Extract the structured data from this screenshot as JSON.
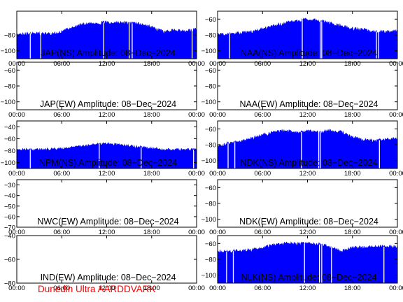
{
  "footer": "Dunedin Ultra AARDDVARK",
  "colors": {
    "signal": "#0000ff",
    "axes": "#000000",
    "footer": "#ff0000",
    "background": "#ffffff"
  },
  "x_ticks": [
    "00:00",
    "06:00",
    "12:00",
    "18:00",
    "00:00"
  ],
  "chart_data": [
    {
      "type": "area",
      "title": "JAP(NS) Amplitude: 08−Dec−2024",
      "x_hours": [
        0,
        1.5,
        3,
        4.5,
        6,
        7.5,
        9,
        10.5,
        12,
        13.5,
        15,
        16.5,
        18,
        19.5,
        21,
        22.5,
        24
      ],
      "y_max": [
        -78,
        -76,
        -76,
        -77,
        -74,
        -68,
        -64,
        -63,
        -62,
        -62,
        -63,
        -64,
        -68,
        -74,
        -72,
        -74,
        -70
      ],
      "dips": [
        [
          1.8,
          -104
        ],
        [
          3.2,
          -96
        ],
        [
          11.6,
          -100
        ],
        [
          15.0,
          -106
        ],
        [
          15.4,
          -100
        ],
        [
          23.4,
          -96
        ]
      ],
      "ylim": [
        -110,
        -50
      ],
      "yticks": [
        "-80",
        "-100"
      ],
      "ytick_values": [
        -80,
        -100
      ],
      "has_data": true
    },
    {
      "type": "area",
      "title": "NAA(NS) Amplitude: 08−Dec−2024",
      "x_hours": [
        0,
        1.5,
        3,
        4.5,
        6,
        7.5,
        9,
        10.5,
        12,
        13.5,
        15,
        16.5,
        18,
        19.5,
        21,
        22.5,
        24
      ],
      "y_max": [
        -78,
        -76,
        -75,
        -74,
        -70,
        -66,
        -63,
        -60,
        -58,
        -60,
        -63,
        -66,
        -70,
        -71,
        -74,
        -74,
        -73
      ],
      "dips": [
        [
          1.6,
          -96
        ],
        [
          11.3,
          -110
        ],
        [
          13.7,
          -96
        ],
        [
          13.9,
          -104
        ],
        [
          21.2,
          -94
        ],
        [
          21.5,
          -98
        ]
      ],
      "ylim": [
        -110,
        -50
      ],
      "yticks": [
        "-60",
        "-80",
        "-100"
      ],
      "ytick_values": [
        -60,
        -80,
        -100
      ],
      "has_data": true
    },
    {
      "type": "line",
      "title": "JAP(EW) Amplitude: 08−Dec−2024",
      "ylim": [
        -110,
        -50
      ],
      "yticks": [
        "-60",
        "-80",
        "-100"
      ],
      "ytick_values": [
        -60,
        -80,
        -100
      ],
      "has_data": false
    },
    {
      "type": "line",
      "title": "NAA(EW) Amplitude: 08−Dec−2024",
      "ylim": [
        -110,
        -50
      ],
      "yticks": [
        "-60",
        "-80",
        "-100"
      ],
      "ytick_values": [
        -60,
        -80,
        -100
      ],
      "has_data": false
    },
    {
      "type": "area",
      "title": "NPM(NS) Amplitude: 08−Dec−2024",
      "x_hours": [
        0,
        1.5,
        3,
        4.5,
        6,
        7.5,
        9,
        10.5,
        12,
        13.5,
        15,
        16.5,
        18,
        19.5,
        21,
        22.5,
        24
      ],
      "y_max": [
        -76,
        -76,
        -76,
        -75,
        -74,
        -72,
        -70,
        -67,
        -66,
        -68,
        -70,
        -72,
        -74,
        -76,
        -76,
        -76,
        -76
      ],
      "dips": [
        [
          1.8,
          -98
        ],
        [
          11.0,
          -96
        ],
        [
          16.6,
          -98
        ],
        [
          23.6,
          -98
        ]
      ],
      "ylim": [
        -110,
        -30
      ],
      "yticks": [
        "-40",
        "-60",
        "-80",
        "-100"
      ],
      "ytick_values": [
        -40,
        -60,
        -80,
        -100
      ],
      "has_data": true
    },
    {
      "type": "area",
      "title": "NDK(NS) Amplitude: 08−Dec−2024",
      "x_hours": [
        0,
        1.5,
        3,
        4.5,
        6,
        7.5,
        9,
        10.5,
        12,
        13.5,
        15,
        16.5,
        18,
        19.5,
        21,
        22.5,
        24
      ],
      "y_max": [
        -80,
        -76,
        -74,
        -70,
        -66,
        -62,
        -60,
        -63,
        -61,
        -62,
        -60,
        -62,
        -68,
        -72,
        -73,
        -71,
        -69
      ],
      "dips": [
        [
          1.4,
          -106
        ],
        [
          2.3,
          -100
        ],
        [
          11.2,
          -108
        ],
        [
          13.5,
          -96
        ],
        [
          13.7,
          -104
        ],
        [
          21.6,
          -106
        ]
      ],
      "ylim": [
        -110,
        -50
      ],
      "yticks": [
        "-60",
        "-80",
        "-100"
      ],
      "ytick_values": [
        -60,
        -80,
        -100
      ],
      "has_data": true
    },
    {
      "type": "line",
      "title": "NWC(EW) Amplitude: 08−Dec−2024",
      "ylim": [
        -70,
        -25
      ],
      "yticks": [
        "-30",
        "-40",
        "-50",
        "-60",
        "-70"
      ],
      "ytick_values": [
        -30,
        -40,
        -50,
        -60,
        -70
      ],
      "has_data": false
    },
    {
      "type": "line",
      "title": "NDK(EW) Amplitude: 08−Dec−2024",
      "ylim": [
        -110,
        -50
      ],
      "yticks": [
        "-60",
        "-80",
        "-100"
      ],
      "ytick_values": [
        -60,
        -80,
        -100
      ],
      "has_data": false
    },
    {
      "type": "line",
      "title": "IND(EW) Amplitude: 08−Dec−2024",
      "ylim": [
        -80,
        -40
      ],
      "yticks": [
        "-40",
        "-60",
        "-80"
      ],
      "ytick_values": [
        -40,
        -60,
        -80
      ],
      "has_data": false
    },
    {
      "type": "area",
      "title": "NLK(NS) Amplitude: 08−Dec−2024",
      "x_hours": [
        0,
        1.5,
        3,
        4.5,
        6,
        7.5,
        9,
        10.5,
        12,
        13.5,
        15,
        16.5,
        18,
        19.5,
        21,
        22.5,
        24
      ],
      "y_max": [
        -68,
        -68,
        -67,
        -66,
        -63,
        -60,
        -58,
        -58,
        -58,
        -59,
        -62,
        -68,
        -63,
        -63,
        -62,
        -62,
        -62
      ],
      "dips": [
        [
          1.2,
          -110
        ],
        [
          2.1,
          -104
        ],
        [
          11.6,
          -108
        ],
        [
          13.6,
          -100
        ],
        [
          13.9,
          -106
        ],
        [
          15.2,
          -96
        ],
        [
          22.2,
          -96
        ]
      ],
      "ylim": [
        -110,
        -50
      ],
      "yticks": [
        "-60",
        "-80",
        "-100"
      ],
      "ytick_values": [
        -60,
        -80,
        -100
      ],
      "has_data": true
    }
  ]
}
